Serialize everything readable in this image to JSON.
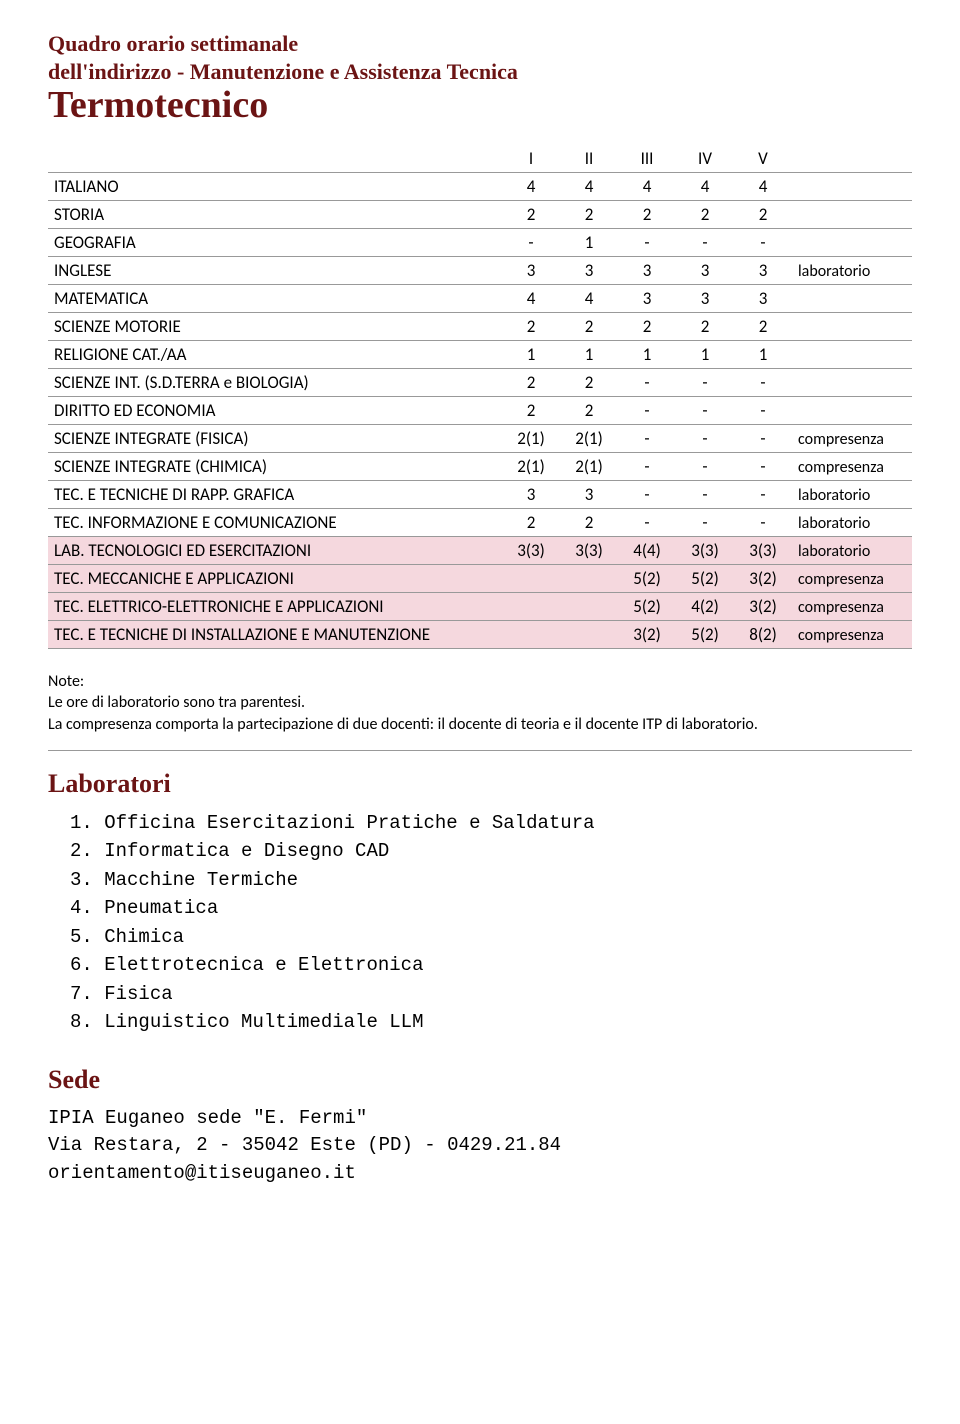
{
  "heading": {
    "line1": "Quadro orario settimanale",
    "line2": "dell'indirizzo - Manutenzione e Assistenza Tecnica",
    "main": "Termotecnico"
  },
  "table": {
    "columns": [
      "I",
      "II",
      "III",
      "IV",
      "V"
    ],
    "rows": [
      {
        "subject": "ITALIANO",
        "cells": [
          "4",
          "4",
          "4",
          "4",
          "4"
        ],
        "note": "",
        "highlight": false
      },
      {
        "subject": "STORIA",
        "cells": [
          "2",
          "2",
          "2",
          "2",
          "2"
        ],
        "note": "",
        "highlight": false
      },
      {
        "subject": "GEOGRAFIA",
        "cells": [
          "-",
          "1",
          "-",
          "-",
          "-"
        ],
        "note": "",
        "highlight": false
      },
      {
        "subject": "INGLESE",
        "cells": [
          "3",
          "3",
          "3",
          "3",
          "3"
        ],
        "note": "laboratorio",
        "highlight": false
      },
      {
        "subject": "MATEMATICA",
        "cells": [
          "4",
          "4",
          "3",
          "3",
          "3"
        ],
        "note": "",
        "highlight": false
      },
      {
        "subject": "SCIENZE MOTORIE",
        "cells": [
          "2",
          "2",
          "2",
          "2",
          "2"
        ],
        "note": "",
        "highlight": false
      },
      {
        "subject": "RELIGIONE CAT./AA",
        "cells": [
          "1",
          "1",
          "1",
          "1",
          "1"
        ],
        "note": "",
        "highlight": false
      },
      {
        "subject": "SCIENZE INT. (S.D.TERRA e BIOLOGIA)",
        "cells": [
          "2",
          "2",
          "-",
          "-",
          "-"
        ],
        "note": "",
        "highlight": false
      },
      {
        "subject": "DIRITTO ED ECONOMIA",
        "cells": [
          "2",
          "2",
          "-",
          "-",
          "-"
        ],
        "note": "",
        "highlight": false
      },
      {
        "subject": "SCIENZE INTEGRATE (FISICA)",
        "cells": [
          "2(1)",
          "2(1)",
          "-",
          "-",
          "-"
        ],
        "note": "compresenza",
        "highlight": false
      },
      {
        "subject": "SCIENZE INTEGRATE (CHIMICA)",
        "cells": [
          "2(1)",
          "2(1)",
          "-",
          "-",
          "-"
        ],
        "note": "compresenza",
        "highlight": false
      },
      {
        "subject": "TEC. E TECNICHE DI RAPP. GRAFICA",
        "cells": [
          "3",
          "3",
          "-",
          "-",
          "-"
        ],
        "note": "laboratorio",
        "highlight": false
      },
      {
        "subject": "TEC. INFORMAZIONE E COMUNICAZIONE",
        "cells": [
          "2",
          "2",
          "-",
          "-",
          "-"
        ],
        "note": "laboratorio",
        "highlight": false
      },
      {
        "subject": "LAB. TECNOLOGICI ED ESERCITAZIONI",
        "cells": [
          "3(3)",
          "3(3)",
          "4(4)",
          "3(3)",
          "3(3)"
        ],
        "note": "laboratorio",
        "highlight": true
      },
      {
        "subject": "TEC. MECCANICHE E APPLICAZIONI",
        "cells": [
          "",
          "",
          "5(2)",
          "5(2)",
          "3(2)"
        ],
        "note": "compresenza",
        "highlight": true
      },
      {
        "subject": "TEC. ELETTRICO-ELETTRONICHE E APPLICAZIONI",
        "cells": [
          "",
          "",
          "5(2)",
          "4(2)",
          "3(2)"
        ],
        "note": "compresenza",
        "highlight": true
      },
      {
        "subject": "TEC. E TECNICHE DI INSTALLAZIONE E MANUTENZIONE",
        "cells": [
          "",
          "",
          "3(2)",
          "5(2)",
          "8(2)"
        ],
        "note": "compresenza",
        "highlight": true
      }
    ]
  },
  "notes": {
    "label": "Note:",
    "line1": "Le ore di laboratorio sono tra parentesi.",
    "line2": "La compresenza comporta la partecipazione di due docenti: il docente di teoria e il docente ITP di laboratorio."
  },
  "labs": {
    "title": "Laboratori",
    "items": [
      "Officina Esercitazioni Pratiche e Saldatura",
      "Informatica e Disegno CAD",
      "Macchine Termiche",
      "Pneumatica",
      "Chimica",
      "Elettrotecnica e Elettronica",
      "Fisica",
      "Linguistico Multimediale LLM"
    ]
  },
  "sede": {
    "title": "Sede",
    "line1": "IPIA Euganeo sede \"E. Fermi\"",
    "line2": "Via Restara, 2 - 35042 Este (PD) - 0429.21.84",
    "line3": "orientamento@itiseuganeo.it"
  },
  "colors": {
    "heading": "#6b1414",
    "text": "#000000",
    "highlight_bg": "#f5d8de",
    "rule": "#999999",
    "background": "#ffffff"
  },
  "typography": {
    "heading_font": "Georgia serif",
    "body_font": "Calibri",
    "mono_font": "Courier New",
    "heading_sub_size_pt": 17,
    "heading_main_size_pt": 28,
    "section_title_size_pt": 20,
    "body_size_pt": 13,
    "mono_size_pt": 14
  }
}
